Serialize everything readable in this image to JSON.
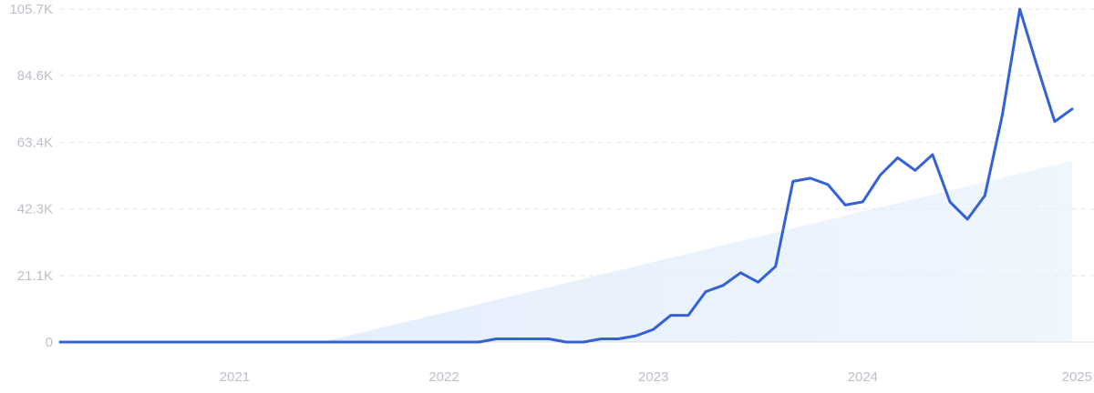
{
  "chart_data": {
    "type": "line",
    "title": "",
    "xlabel": "",
    "ylabel": "",
    "x_ticks": [
      "2021",
      "2022",
      "2023",
      "2024",
      "2025"
    ],
    "y_ticks": [
      {
        "value": 0,
        "label": "0"
      },
      {
        "value": 21100,
        "label": "21.1K"
      },
      {
        "value": 42300,
        "label": "42.3K"
      },
      {
        "value": 63400,
        "label": "63.4K"
      },
      {
        "value": 84600,
        "label": "84.6K"
      },
      {
        "value": 105700,
        "label": "105.7K"
      }
    ],
    "xlim": [
      "2020-03",
      "2025-01"
    ],
    "ylim": [
      0,
      105700
    ],
    "grid": true,
    "line_color": "#3462d6",
    "trend_fill_color": "#e3eefc",
    "series": [
      {
        "x": [
          "2020-03",
          "2021-06",
          "2021-09",
          "2022-03",
          "2022-04",
          "2022-05",
          "2022-06",
          "2022-07",
          "2022-08",
          "2022-09",
          "2022-10",
          "2022-11",
          "2022-12",
          "2023-01",
          "2023-02",
          "2023-03",
          "2023-04",
          "2023-05",
          "2023-06",
          "2023-07",
          "2023-08",
          "2023-09",
          "2023-10",
          "2023-11",
          "2023-12",
          "2024-01",
          "2024-02",
          "2024-03",
          "2024-04",
          "2024-05",
          "2024-06",
          "2024-07",
          "2024-08",
          "2024-09",
          "2024-10",
          "2024-11",
          "2024-12",
          "2025-01"
        ],
        "values": [
          0,
          0,
          0,
          0,
          1000,
          1000,
          1000,
          1000,
          0,
          0,
          1000,
          1000,
          2000,
          4000,
          8500,
          8500,
          16000,
          18000,
          22000,
          19000,
          24000,
          51000,
          52000,
          50000,
          43500,
          44500,
          53000,
          58500,
          54500,
          59500,
          44500,
          39000,
          46500,
          72000,
          105700,
          87500,
          70000,
          74000
        ]
      }
    ],
    "trend": {
      "start": {
        "x": "2021-06",
        "value": 0
      },
      "end": {
        "x": "2025-01",
        "value": 57500
      }
    }
  }
}
